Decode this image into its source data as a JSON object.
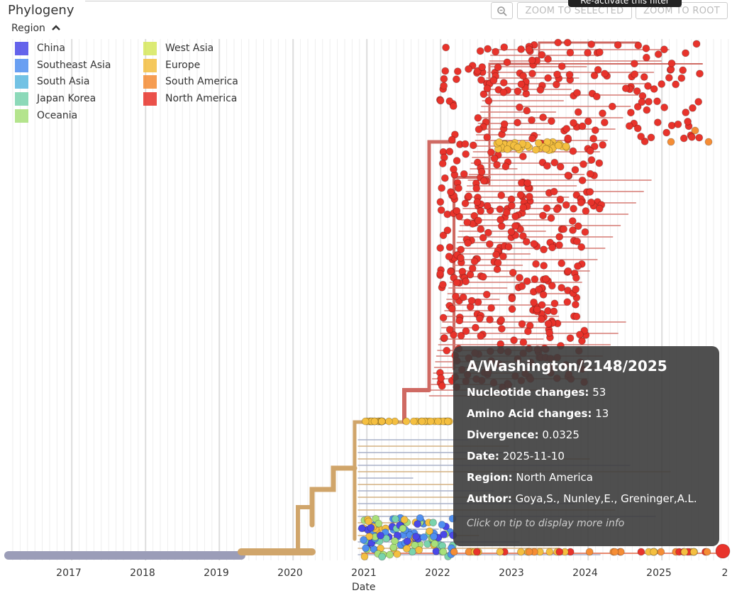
{
  "header": {
    "title": "Phylogeny",
    "zoom_icon": "zoom-out-icon",
    "zoom_selected_label": "ZOOM TO SELECTED",
    "zoom_root_label": "ZOOM TO ROOT",
    "reactivate_tooltip": "Re-activate this filter"
  },
  "legend": {
    "title": "Region",
    "toggle_icon": "chevron-up-icon",
    "items": [
      {
        "label": "China",
        "color": "#4a48e8"
      },
      {
        "label": "Southeast Asia",
        "color": "#4f8ff0"
      },
      {
        "label": "South Asia",
        "color": "#5ab8e0"
      },
      {
        "label": "Japan Korea",
        "color": "#79d3ad"
      },
      {
        "label": "Oceania",
        "color": "#a8e07a"
      },
      {
        "label": "West Asia",
        "color": "#d7e85c"
      },
      {
        "label": "Europe",
        "color": "#f4bf40"
      },
      {
        "label": "South America",
        "color": "#f58d35"
      },
      {
        "label": "North America",
        "color": "#e8332b"
      }
    ]
  },
  "axis": {
    "title": "Date",
    "ticks": [
      "2017",
      "2018",
      "2019",
      "2020",
      "2021",
      "2022",
      "2023",
      "2024",
      "2025",
      "2"
    ]
  },
  "tooltip": {
    "name": "A/Washington/2148/2025",
    "rows": [
      {
        "key": "Nucleotide changes:",
        "value": "53"
      },
      {
        "key": "Amino Acid changes:",
        "value": "13"
      },
      {
        "key": "Divergence:",
        "value": "0.0325"
      },
      {
        "key": "Date:",
        "value": "2025-11-10"
      },
      {
        "key": "Region:",
        "value": "North America"
      },
      {
        "key": "Author:",
        "value": "Goya,S., Nunley,E., Greninger,A.L."
      }
    ],
    "hint": "Click on tip to display more info"
  }
}
